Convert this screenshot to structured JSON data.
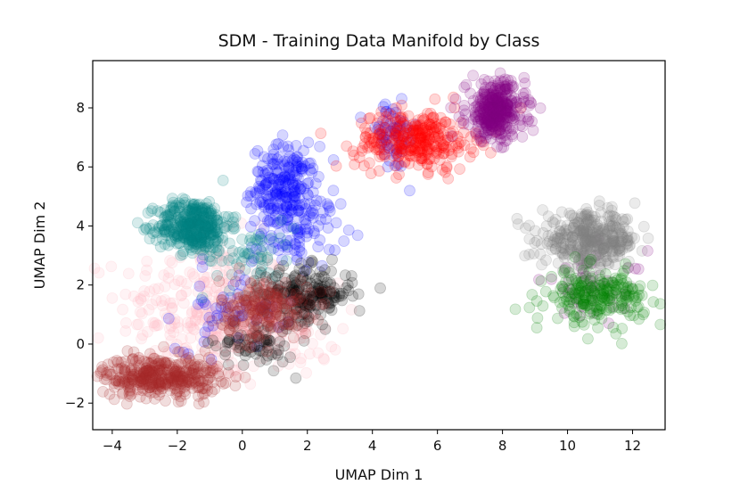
{
  "chart_data": {
    "type": "scatter",
    "title": "SDM - Training Data Manifold by Class",
    "xlabel": "UMAP Dim 1",
    "ylabel": "UMAP Dim 2",
    "xlim": [
      -4.6,
      13.0
    ],
    "ylim": [
      -2.9,
      9.6
    ],
    "xticks": [
      -4,
      -2,
      0,
      2,
      4,
      6,
      8,
      10,
      12
    ],
    "yticks": [
      -2,
      0,
      2,
      4,
      6,
      8
    ],
    "xtick_labels": [
      "−4",
      "−2",
      "0",
      "2",
      "4",
      "6",
      "8",
      "10",
      "12"
    ],
    "ytick_labels": [
      "−2",
      "0",
      "2",
      "4",
      "6",
      "8"
    ],
    "grid": false,
    "legend": "none",
    "series": [
      {
        "color": "#ffb6c1",
        "clusters": [
          {
            "cx": -1.2,
            "cy": 1.2,
            "sx": 1.3,
            "sy": 1.2,
            "n": 260
          },
          {
            "cx": 1.0,
            "cy": 0.5,
            "sx": 1.0,
            "sy": 0.8,
            "n": 120
          }
        ]
      },
      {
        "color": "#0000ff",
        "clusters": [
          {
            "cx": 1.3,
            "cy": 5.3,
            "sx": 0.5,
            "sy": 0.7,
            "n": 220
          },
          {
            "cx": 1.8,
            "cy": 3.8,
            "sx": 0.6,
            "sy": 0.6,
            "n": 80
          },
          {
            "cx": 4.6,
            "cy": 7.0,
            "sx": 0.4,
            "sy": 0.6,
            "n": 60
          },
          {
            "cx": -0.4,
            "cy": 1.2,
            "sx": 0.8,
            "sy": 0.7,
            "n": 50
          }
        ]
      },
      {
        "color": "#008080",
        "clusters": [
          {
            "cx": -1.5,
            "cy": 4.0,
            "sx": 0.55,
            "sy": 0.45,
            "n": 380
          },
          {
            "cx": 0.2,
            "cy": 3.0,
            "sx": 0.7,
            "sy": 0.6,
            "n": 60
          }
        ]
      },
      {
        "color": "#000000",
        "clusters": [
          {
            "cx": 2.0,
            "cy": 1.7,
            "sx": 0.7,
            "sy": 0.45,
            "n": 200
          },
          {
            "cx": 0.4,
            "cy": 0.0,
            "sx": 0.6,
            "sy": 0.4,
            "n": 70
          }
        ]
      },
      {
        "color": "#a52a2a",
        "clusters": [
          {
            "cx": -2.5,
            "cy": -1.1,
            "sx": 0.9,
            "sy": 0.35,
            "n": 380
          },
          {
            "cx": 0.7,
            "cy": 1.2,
            "sx": 0.7,
            "sy": 0.5,
            "n": 200
          }
        ]
      },
      {
        "color": "#ff0000",
        "clusters": [
          {
            "cx": 5.3,
            "cy": 6.9,
            "sx": 0.9,
            "sy": 0.5,
            "n": 300
          }
        ]
      },
      {
        "color": "#800080",
        "clusters": [
          {
            "cx": 7.8,
            "cy": 7.9,
            "sx": 0.45,
            "sy": 0.5,
            "n": 360
          },
          {
            "cx": 10.8,
            "cy": 2.0,
            "sx": 0.8,
            "sy": 0.6,
            "n": 40
          }
        ]
      },
      {
        "color": "#808080",
        "clusters": [
          {
            "cx": 10.7,
            "cy": 3.5,
            "sx": 0.75,
            "sy": 0.45,
            "n": 380
          }
        ]
      },
      {
        "color": "#008000",
        "clusters": [
          {
            "cx": 10.9,
            "cy": 1.6,
            "sx": 0.75,
            "sy": 0.45,
            "n": 220
          }
        ]
      }
    ]
  }
}
